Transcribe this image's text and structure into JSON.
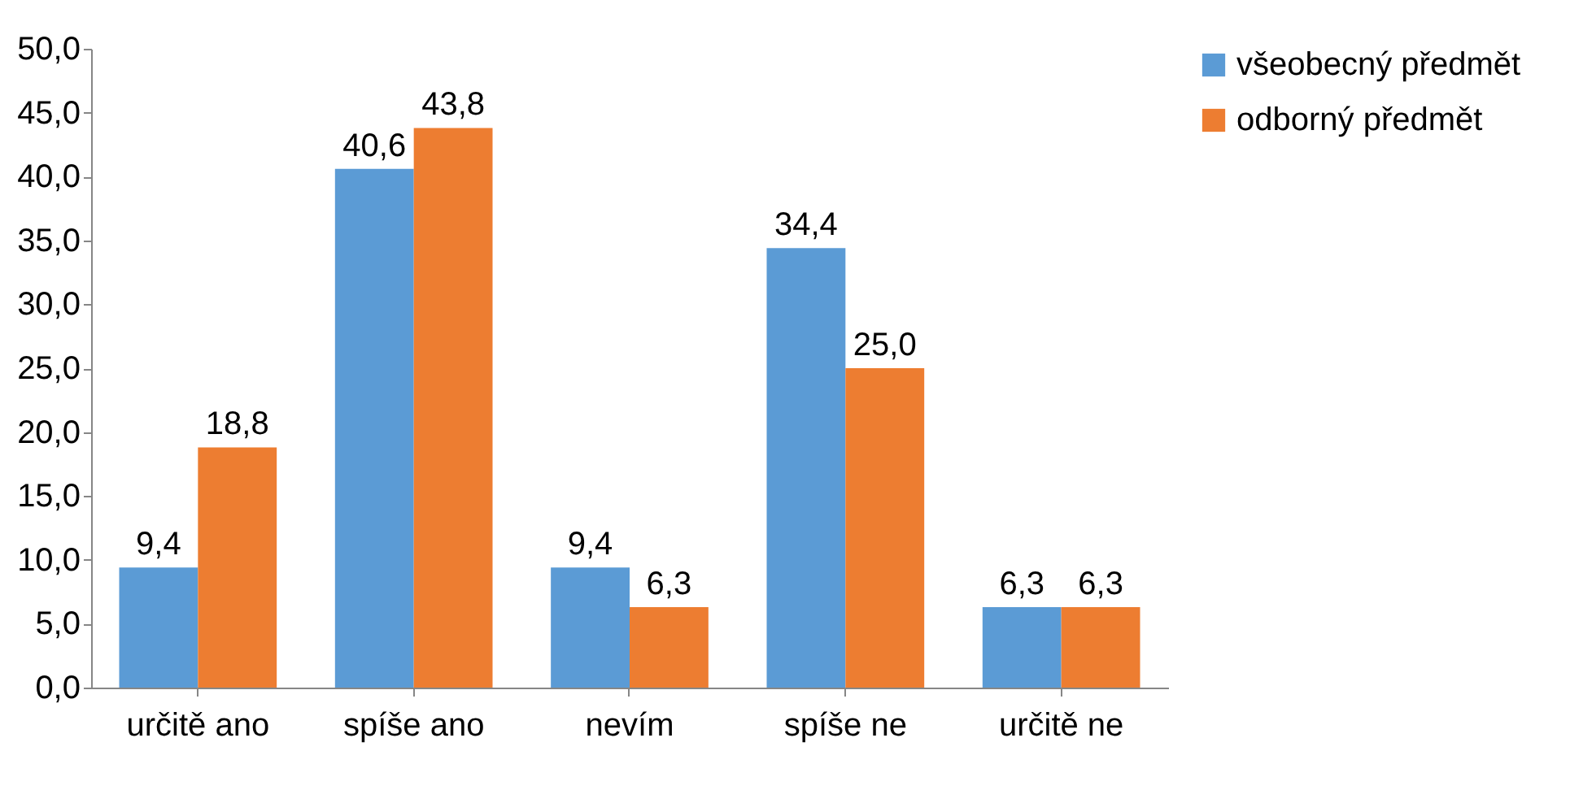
{
  "chart_data": {
    "type": "bar",
    "categories": [
      "určitě ano",
      "spíše ano",
      "nevím",
      "spíše ne",
      "určitě ne"
    ],
    "series": [
      {
        "name": "všeobecný předmět",
        "color": "#5b9bd5",
        "values": [
          9.4,
          40.6,
          9.4,
          34.4,
          6.3
        ],
        "value_labels": [
          "9,4",
          "40,6",
          "9,4",
          "34,4",
          "6,3"
        ]
      },
      {
        "name": "odborný předmět",
        "color": "#ed7d31",
        "values": [
          18.8,
          43.8,
          6.3,
          25.0,
          6.3
        ],
        "value_labels": [
          "18,8",
          "43,8",
          "6,3",
          "25,0",
          "6,3"
        ]
      }
    ],
    "ylim": [
      0,
      50
    ],
    "yticks": [
      {
        "value": 0,
        "label": "0,0"
      },
      {
        "value": 5,
        "label": "5,0"
      },
      {
        "value": 10,
        "label": "10,0"
      },
      {
        "value": 15,
        "label": "15,0"
      },
      {
        "value": 20,
        "label": "20,0"
      },
      {
        "value": 25,
        "label": "25,0"
      },
      {
        "value": 30,
        "label": "30,0"
      },
      {
        "value": 35,
        "label": "35,0"
      },
      {
        "value": 40,
        "label": "40,0"
      },
      {
        "value": 45,
        "label": "45,0"
      },
      {
        "value": 50,
        "label": "50,0"
      }
    ],
    "legend": "right",
    "grid": false
  }
}
